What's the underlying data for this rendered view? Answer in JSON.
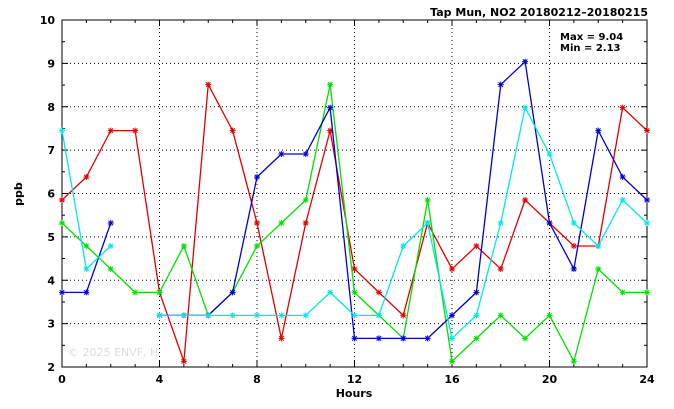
{
  "chart_data": {
    "type": "line",
    "title": "Tap Mun, NO2 20180212–20180215",
    "xlabel": "Hours",
    "ylabel": "ppb",
    "xlim": [
      0,
      24
    ],
    "ylim": [
      2,
      10
    ],
    "xticks": [
      0,
      4,
      8,
      12,
      16,
      20,
      24
    ],
    "yticks": [
      2,
      3,
      4,
      5,
      6,
      7,
      8,
      9,
      10
    ],
    "grid": true,
    "annotations": [
      "Max = 9.04",
      "Min = 2.13"
    ],
    "watermark": "© 2025 ENVF, H",
    "series": [
      {
        "color": "#e00000",
        "x": [
          0,
          1,
          2,
          3,
          4,
          5,
          6,
          7,
          8,
          9,
          10,
          11,
          12,
          13,
          14,
          15,
          16,
          17,
          18,
          19,
          20,
          21,
          22,
          23,
          24
        ],
        "values": [
          5.85,
          6.38,
          7.45,
          7.45,
          3.72,
          2.13,
          8.51,
          7.45,
          5.32,
          2.66,
          5.32,
          7.45,
          4.26,
          3.72,
          3.19,
          5.32,
          4.26,
          4.79,
          4.26,
          5.85,
          5.32,
          4.79,
          4.79,
          7.98,
          7.45
        ]
      },
      {
        "color": "#00e000",
        "x": [
          0,
          1,
          2,
          3,
          4,
          5,
          6,
          7,
          8,
          9,
          10,
          11,
          12,
          13,
          14,
          15,
          16,
          17,
          18,
          19,
          20,
          21,
          22,
          23,
          24
        ],
        "values": [
          5.32,
          4.79,
          4.26,
          3.72,
          3.72,
          4.79,
          3.19,
          3.72,
          4.79,
          5.32,
          5.85,
          8.51,
          3.72,
          3.19,
          2.66,
          5.85,
          2.13,
          2.66,
          3.19,
          2.66,
          3.19,
          2.13,
          4.26,
          3.72,
          3.72
        ]
      },
      {
        "color": "#0000d0",
        "x": [
          0,
          1,
          2,
          3,
          4,
          5,
          6,
          7,
          8,
          9,
          10,
          11,
          12,
          13,
          14,
          15,
          16,
          17,
          18,
          19,
          20,
          21,
          22,
          23,
          24
        ],
        "values": [
          3.72,
          3.72,
          5.32,
          null,
          3.19,
          3.19,
          3.19,
          3.72,
          6.38,
          6.91,
          6.91,
          7.98,
          2.66,
          2.66,
          2.66,
          2.66,
          3.19,
          3.72,
          8.51,
          9.04,
          5.32,
          4.26,
          7.45,
          6.38,
          5.85
        ]
      },
      {
        "color": "#00e8e8",
        "x": [
          0,
          1,
          2,
          3,
          4,
          5,
          6,
          7,
          8,
          9,
          10,
          11,
          12,
          13,
          14,
          15,
          16,
          17,
          18,
          19,
          20,
          21,
          22,
          23,
          24
        ],
        "values": [
          7.45,
          4.26,
          4.79,
          null,
          3.19,
          3.19,
          3.19,
          3.19,
          3.19,
          3.19,
          3.19,
          3.72,
          3.19,
          3.19,
          4.79,
          5.32,
          2.66,
          3.19,
          5.32,
          7.98,
          6.91,
          5.32,
          4.79,
          5.85,
          5.32
        ]
      }
    ]
  }
}
